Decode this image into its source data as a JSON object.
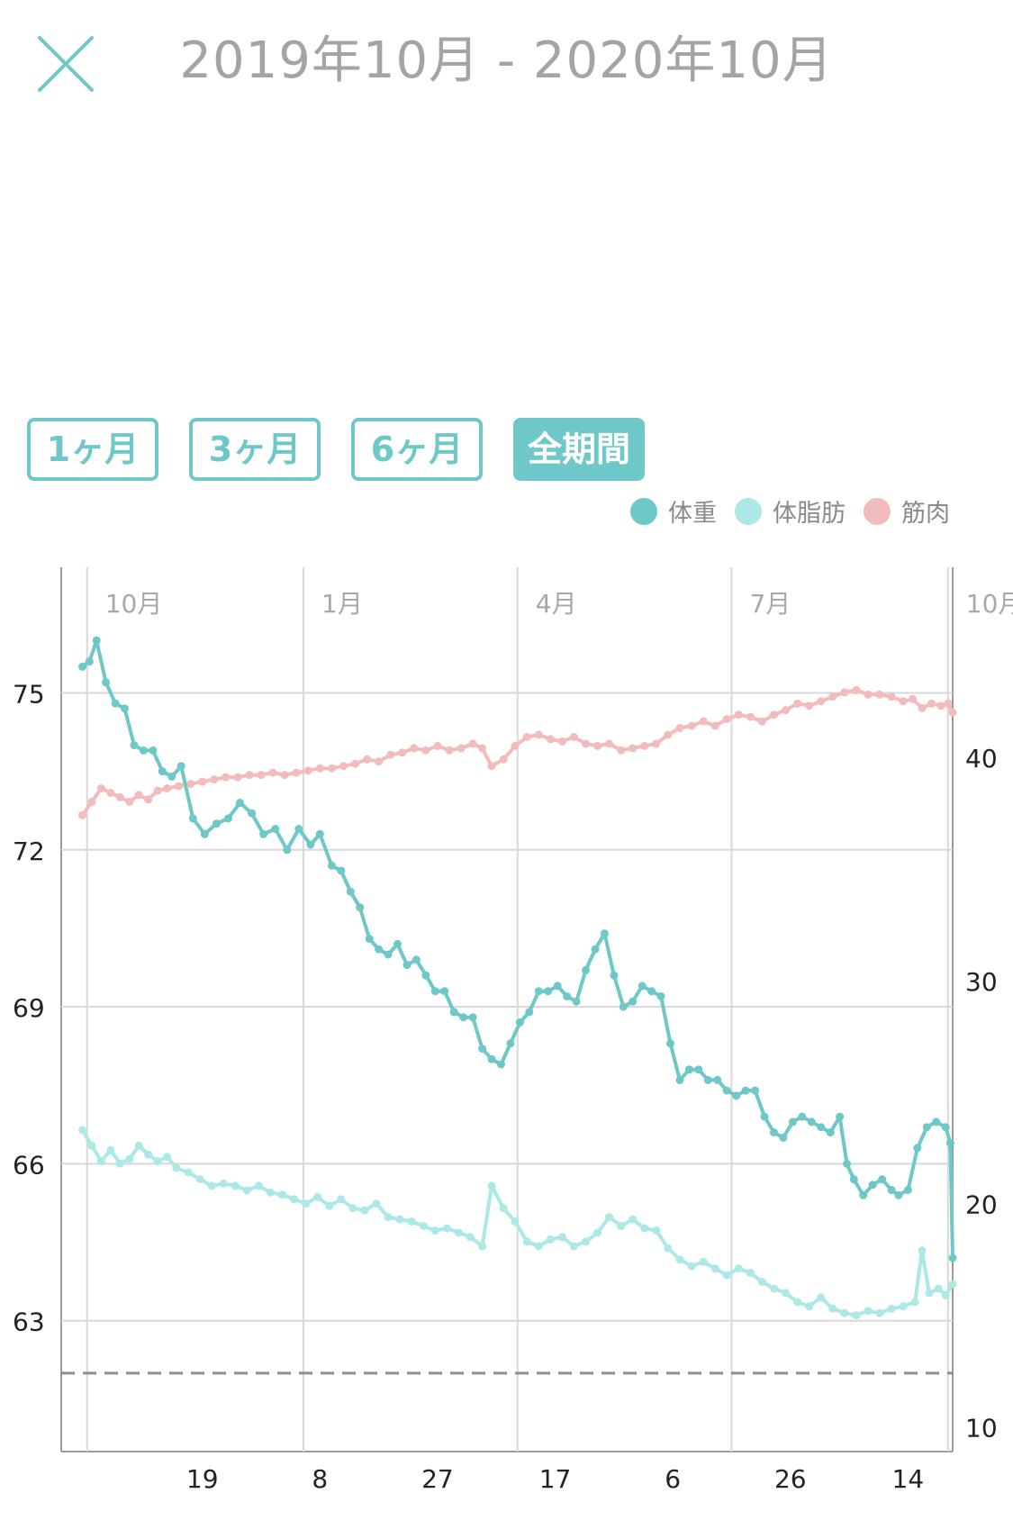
{
  "header": {
    "title": "2019年10月 - 2020年10月"
  },
  "range_tabs": [
    {
      "label": "1ヶ月",
      "active": false
    },
    {
      "label": "3ヶ月",
      "active": false
    },
    {
      "label": "6ヶ月",
      "active": false
    },
    {
      "label": "全期間",
      "active": true
    }
  ],
  "colors": {
    "accent": "#6dc8c7",
    "weight": "#6dc8c7",
    "body_fat": "#abe8e6",
    "muscle": "#f3bcbc",
    "grid": "#d8d8d8",
    "axis": "#9a9a9a",
    "goal_line": "#8e8e8e"
  },
  "chart_data": {
    "type": "line",
    "months": [
      "10月",
      "1月",
      "4月",
      "7月",
      "10月"
    ],
    "days": [
      "19",
      "8",
      "27",
      "17",
      "6",
      "26",
      "14"
    ],
    "left_axis": {
      "ticks": [
        "75",
        "72",
        "69",
        "66",
        "63"
      ],
      "range": [
        60.5,
        77.4
      ]
    },
    "right_axis": {
      "ticks": [
        "40",
        "30",
        "20",
        "10"
      ],
      "range": [
        8.9,
        48.5
      ]
    },
    "x_range": [
      "2019-09-20",
      "2020-10-03"
    ],
    "goal_value": 62.0,
    "series": [
      {
        "name": "体重",
        "axis": "left",
        "points": [
          [
            "2019-09-29",
            75.5
          ],
          [
            "2019-10-02",
            75.6
          ],
          [
            "2019-10-05",
            76.0
          ],
          [
            "2019-10-09",
            75.2
          ],
          [
            "2019-10-13",
            74.8
          ],
          [
            "2019-10-17",
            74.7
          ],
          [
            "2019-10-21",
            74.0
          ],
          [
            "2019-10-25",
            73.9
          ],
          [
            "2019-10-29",
            73.9
          ],
          [
            "2019-11-02",
            73.5
          ],
          [
            "2019-11-06",
            73.4
          ],
          [
            "2019-11-10",
            73.6
          ],
          [
            "2019-11-15",
            72.6
          ],
          [
            "2019-11-20",
            72.3
          ],
          [
            "2019-11-25",
            72.5
          ],
          [
            "2019-11-30",
            72.6
          ],
          [
            "2019-12-05",
            72.9
          ],
          [
            "2019-12-10",
            72.7
          ],
          [
            "2019-12-15",
            72.3
          ],
          [
            "2019-12-20",
            72.4
          ],
          [
            "2019-12-25",
            72.0
          ],
          [
            "2019-12-30",
            72.4
          ],
          [
            "2020-01-04",
            72.1
          ],
          [
            "2020-01-08",
            72.3
          ],
          [
            "2020-01-13",
            71.7
          ],
          [
            "2020-01-17",
            71.6
          ],
          [
            "2020-01-21",
            71.2
          ],
          [
            "2020-01-25",
            70.9
          ],
          [
            "2020-01-29",
            70.3
          ],
          [
            "2020-02-02",
            70.1
          ],
          [
            "2020-02-06",
            70.0
          ],
          [
            "2020-02-10",
            70.2
          ],
          [
            "2020-02-14",
            69.8
          ],
          [
            "2020-02-18",
            69.9
          ],
          [
            "2020-02-22",
            69.6
          ],
          [
            "2020-02-26",
            69.3
          ],
          [
            "2020-03-01",
            69.3
          ],
          [
            "2020-03-05",
            68.9
          ],
          [
            "2020-03-09",
            68.8
          ],
          [
            "2020-03-13",
            68.8
          ],
          [
            "2020-03-17",
            68.2
          ],
          [
            "2020-03-21",
            68.0
          ],
          [
            "2020-03-25",
            67.9
          ],
          [
            "2020-03-29",
            68.3
          ],
          [
            "2020-04-02",
            68.7
          ],
          [
            "2020-04-06",
            68.9
          ],
          [
            "2020-04-10",
            69.3
          ],
          [
            "2020-04-14",
            69.3
          ],
          [
            "2020-04-18",
            69.4
          ],
          [
            "2020-04-22",
            69.2
          ],
          [
            "2020-04-26",
            69.1
          ],
          [
            "2020-04-30",
            69.7
          ],
          [
            "2020-05-04",
            70.1
          ],
          [
            "2020-05-08",
            70.4
          ],
          [
            "2020-05-12",
            69.6
          ],
          [
            "2020-05-16",
            69.0
          ],
          [
            "2020-05-20",
            69.1
          ],
          [
            "2020-05-24",
            69.4
          ],
          [
            "2020-05-28",
            69.3
          ],
          [
            "2020-06-01",
            69.2
          ],
          [
            "2020-06-05",
            68.3
          ],
          [
            "2020-06-09",
            67.6
          ],
          [
            "2020-06-13",
            67.8
          ],
          [
            "2020-06-17",
            67.8
          ],
          [
            "2020-06-21",
            67.6
          ],
          [
            "2020-06-25",
            67.6
          ],
          [
            "2020-06-29",
            67.4
          ],
          [
            "2020-07-03",
            67.3
          ],
          [
            "2020-07-07",
            67.4
          ],
          [
            "2020-07-11",
            67.4
          ],
          [
            "2020-07-15",
            66.9
          ],
          [
            "2020-07-19",
            66.6
          ],
          [
            "2020-07-23",
            66.5
          ],
          [
            "2020-07-27",
            66.8
          ],
          [
            "2020-07-31",
            66.9
          ],
          [
            "2020-08-04",
            66.8
          ],
          [
            "2020-08-08",
            66.7
          ],
          [
            "2020-08-12",
            66.6
          ],
          [
            "2020-08-16",
            66.9
          ],
          [
            "2020-08-19",
            66.0
          ],
          [
            "2020-08-22",
            65.7
          ],
          [
            "2020-08-26",
            65.4
          ],
          [
            "2020-08-30",
            65.6
          ],
          [
            "2020-09-03",
            65.7
          ],
          [
            "2020-09-07",
            65.5
          ],
          [
            "2020-09-10",
            65.4
          ],
          [
            "2020-09-14",
            65.5
          ],
          [
            "2020-09-18",
            66.3
          ],
          [
            "2020-09-22",
            66.7
          ],
          [
            "2020-09-26",
            66.8
          ],
          [
            "2020-09-30",
            66.7
          ],
          [
            "2020-10-02",
            66.4
          ],
          [
            "2020-10-03",
            64.2
          ]
        ]
      },
      {
        "name": "体脂肪",
        "axis": "right",
        "points": [
          [
            "2019-09-29",
            23.3
          ],
          [
            "2019-10-03",
            22.6
          ],
          [
            "2019-10-07",
            21.9
          ],
          [
            "2019-10-11",
            22.4
          ],
          [
            "2019-10-15",
            21.8
          ],
          [
            "2019-10-19",
            22.0
          ],
          [
            "2019-10-23",
            22.6
          ],
          [
            "2019-10-27",
            22.2
          ],
          [
            "2019-10-31",
            21.9
          ],
          [
            "2019-11-04",
            22.1
          ],
          [
            "2019-11-08",
            21.6
          ],
          [
            "2019-11-13",
            21.4
          ],
          [
            "2019-11-18",
            21.1
          ],
          [
            "2019-11-23",
            20.8
          ],
          [
            "2019-11-28",
            20.9
          ],
          [
            "2019-12-03",
            20.8
          ],
          [
            "2019-12-08",
            20.6
          ],
          [
            "2019-12-13",
            20.8
          ],
          [
            "2019-12-18",
            20.5
          ],
          [
            "2019-12-23",
            20.4
          ],
          [
            "2019-12-28",
            20.2
          ],
          [
            "2020-01-02",
            20.0
          ],
          [
            "2020-01-07",
            20.3
          ],
          [
            "2020-01-12",
            19.9
          ],
          [
            "2020-01-17",
            20.2
          ],
          [
            "2020-01-22",
            19.8
          ],
          [
            "2020-01-27",
            19.7
          ],
          [
            "2020-02-01",
            20.0
          ],
          [
            "2020-02-06",
            19.4
          ],
          [
            "2020-02-11",
            19.3
          ],
          [
            "2020-02-16",
            19.2
          ],
          [
            "2020-02-21",
            19.0
          ],
          [
            "2020-02-26",
            18.8
          ],
          [
            "2020-03-02",
            18.9
          ],
          [
            "2020-03-07",
            18.7
          ],
          [
            "2020-03-12",
            18.5
          ],
          [
            "2020-03-17",
            18.1
          ],
          [
            "2020-03-21",
            20.8
          ],
          [
            "2020-03-26",
            19.8
          ],
          [
            "2020-03-31",
            19.2
          ],
          [
            "2020-04-05",
            18.3
          ],
          [
            "2020-04-10",
            18.1
          ],
          [
            "2020-04-15",
            18.4
          ],
          [
            "2020-04-20",
            18.5
          ],
          [
            "2020-04-25",
            18.1
          ],
          [
            "2020-04-30",
            18.3
          ],
          [
            "2020-05-05",
            18.7
          ],
          [
            "2020-05-10",
            19.4
          ],
          [
            "2020-05-15",
            19.0
          ],
          [
            "2020-05-20",
            19.3
          ],
          [
            "2020-05-25",
            18.9
          ],
          [
            "2020-05-30",
            18.8
          ],
          [
            "2020-06-04",
            18.0
          ],
          [
            "2020-06-09",
            17.5
          ],
          [
            "2020-06-14",
            17.2
          ],
          [
            "2020-06-19",
            17.4
          ],
          [
            "2020-06-24",
            17.1
          ],
          [
            "2020-06-29",
            16.8
          ],
          [
            "2020-07-04",
            17.1
          ],
          [
            "2020-07-09",
            16.9
          ],
          [
            "2020-07-14",
            16.5
          ],
          [
            "2020-07-19",
            16.2
          ],
          [
            "2020-07-24",
            16.0
          ],
          [
            "2020-07-29",
            15.6
          ],
          [
            "2020-08-03",
            15.4
          ],
          [
            "2020-08-08",
            15.8
          ],
          [
            "2020-08-13",
            15.3
          ],
          [
            "2020-08-18",
            15.1
          ],
          [
            "2020-08-23",
            15.0
          ],
          [
            "2020-08-28",
            15.2
          ],
          [
            "2020-09-02",
            15.1
          ],
          [
            "2020-09-07",
            15.3
          ],
          [
            "2020-09-12",
            15.4
          ],
          [
            "2020-09-17",
            15.6
          ],
          [
            "2020-09-20",
            17.9
          ],
          [
            "2020-09-23",
            16.0
          ],
          [
            "2020-09-27",
            16.2
          ],
          [
            "2020-09-30",
            15.9
          ],
          [
            "2020-10-03",
            16.4
          ]
        ]
      },
      {
        "name": "筋肉",
        "axis": "right",
        "points": [
          [
            "2019-09-29",
            37.4
          ],
          [
            "2019-10-03",
            38.0
          ],
          [
            "2019-10-07",
            38.6
          ],
          [
            "2019-10-11",
            38.4
          ],
          [
            "2019-10-15",
            38.2
          ],
          [
            "2019-10-19",
            38.0
          ],
          [
            "2019-10-23",
            38.3
          ],
          [
            "2019-10-27",
            38.1
          ],
          [
            "2019-10-31",
            38.5
          ],
          [
            "2019-11-04",
            38.6
          ],
          [
            "2019-11-09",
            38.7
          ],
          [
            "2019-11-14",
            38.8
          ],
          [
            "2019-11-19",
            38.9
          ],
          [
            "2019-11-24",
            39.0
          ],
          [
            "2019-11-29",
            39.1
          ],
          [
            "2019-12-04",
            39.1
          ],
          [
            "2019-12-09",
            39.2
          ],
          [
            "2019-12-14",
            39.2
          ],
          [
            "2019-12-19",
            39.3
          ],
          [
            "2019-12-24",
            39.2
          ],
          [
            "2019-12-29",
            39.3
          ],
          [
            "2020-01-03",
            39.4
          ],
          [
            "2020-01-08",
            39.5
          ],
          [
            "2020-01-13",
            39.5
          ],
          [
            "2020-01-18",
            39.6
          ],
          [
            "2020-01-23",
            39.7
          ],
          [
            "2020-01-28",
            39.9
          ],
          [
            "2020-02-02",
            39.8
          ],
          [
            "2020-02-07",
            40.1
          ],
          [
            "2020-02-12",
            40.2
          ],
          [
            "2020-02-17",
            40.4
          ],
          [
            "2020-02-22",
            40.3
          ],
          [
            "2020-02-27",
            40.5
          ],
          [
            "2020-03-03",
            40.3
          ],
          [
            "2020-03-08",
            40.4
          ],
          [
            "2020-03-13",
            40.6
          ],
          [
            "2020-03-17",
            40.4
          ],
          [
            "2020-03-21",
            39.6
          ],
          [
            "2020-03-26",
            39.9
          ],
          [
            "2020-03-31",
            40.5
          ],
          [
            "2020-04-05",
            40.9
          ],
          [
            "2020-04-10",
            41.0
          ],
          [
            "2020-04-15",
            40.8
          ],
          [
            "2020-04-20",
            40.7
          ],
          [
            "2020-04-25",
            40.9
          ],
          [
            "2020-04-30",
            40.6
          ],
          [
            "2020-05-05",
            40.5
          ],
          [
            "2020-05-10",
            40.6
          ],
          [
            "2020-05-15",
            40.3
          ],
          [
            "2020-05-20",
            40.4
          ],
          [
            "2020-05-25",
            40.5
          ],
          [
            "2020-05-30",
            40.6
          ],
          [
            "2020-06-04",
            41.0
          ],
          [
            "2020-06-09",
            41.3
          ],
          [
            "2020-06-14",
            41.4
          ],
          [
            "2020-06-19",
            41.6
          ],
          [
            "2020-06-24",
            41.4
          ],
          [
            "2020-06-29",
            41.7
          ],
          [
            "2020-07-04",
            41.9
          ],
          [
            "2020-07-09",
            41.8
          ],
          [
            "2020-07-14",
            41.6
          ],
          [
            "2020-07-19",
            41.9
          ],
          [
            "2020-07-24",
            42.1
          ],
          [
            "2020-07-29",
            42.4
          ],
          [
            "2020-08-03",
            42.3
          ],
          [
            "2020-08-08",
            42.5
          ],
          [
            "2020-08-13",
            42.7
          ],
          [
            "2020-08-18",
            42.9
          ],
          [
            "2020-08-23",
            43.0
          ],
          [
            "2020-08-28",
            42.8
          ],
          [
            "2020-09-02",
            42.8
          ],
          [
            "2020-09-07",
            42.7
          ],
          [
            "2020-09-12",
            42.5
          ],
          [
            "2020-09-16",
            42.6
          ],
          [
            "2020-09-20",
            42.2
          ],
          [
            "2020-09-24",
            42.4
          ],
          [
            "2020-09-28",
            42.3
          ],
          [
            "2020-10-01",
            42.4
          ],
          [
            "2020-10-03",
            42.0
          ]
        ]
      }
    ]
  }
}
